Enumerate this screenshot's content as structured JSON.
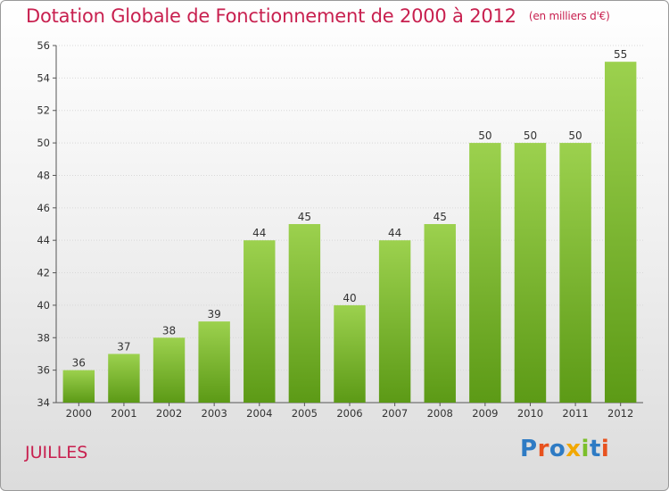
{
  "header": {
    "title": "Dotation Globale de Fonctionnement de 2000 à 2012",
    "unit": "(en milliers d'€)"
  },
  "footer": {
    "commune": "JUILLES",
    "logo_text": "Proxiti",
    "logo_colors": [
      "#2e7bc4",
      "#e8521e",
      "#2e7bc4",
      "#f2a800",
      "#7bbf2b",
      "#2e7bc4",
      "#e8521e"
    ]
  },
  "colors": {
    "bar_top": "#9cd14e",
    "bar_bottom": "#5c9a16",
    "axis": "#555555",
    "grid": "#d8d8d8",
    "title": "#c8204f"
  },
  "chart_data": {
    "type": "bar",
    "title": "Dotation Globale de Fonctionnement de 2000 à 2012",
    "subtitle": "(en milliers d'€)",
    "xlabel": "",
    "ylabel": "",
    "categories": [
      "2000",
      "2001",
      "2002",
      "2003",
      "2004",
      "2005",
      "2006",
      "2007",
      "2008",
      "2009",
      "2010",
      "2011",
      "2012"
    ],
    "values": [
      36,
      37,
      38,
      39,
      44,
      45,
      40,
      44,
      45,
      50,
      50,
      50,
      55
    ],
    "ylim": [
      34,
      56
    ],
    "yticks": [
      34,
      36,
      38,
      40,
      42,
      44,
      46,
      48,
      50,
      52,
      54,
      56
    ],
    "grid": true
  }
}
